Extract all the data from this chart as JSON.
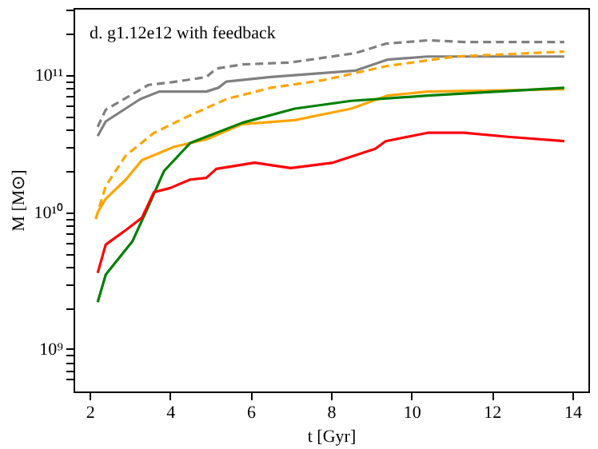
{
  "chart_data": {
    "type": "line",
    "xlabel": "t [Gyr]",
    "ylabel": "M [M⊙]",
    "annotations": [
      "d. g1.12e12 with feedback"
    ],
    "log": "y",
    "grid": false,
    "xlim": [
      1.6,
      14.4
    ],
    "xticks": [
      2,
      4,
      6,
      8,
      10,
      12,
      14
    ],
    "ylim": [
      490000000.0,
      310000000000.0
    ],
    "yticks": [
      {
        "value": 600000000.0,
        "label": null
      },
      {
        "value": 700000000.0,
        "label": null
      },
      {
        "value": 800000000.0,
        "label": null
      },
      {
        "value": 900000000.0,
        "label": null
      },
      {
        "value": 1000000000.0,
        "label": "10⁹"
      },
      {
        "value": 2000000000.0,
        "label": null
      },
      {
        "value": 3000000000.0,
        "label": null
      },
      {
        "value": 4000000000.0,
        "label": null
      },
      {
        "value": 5000000000.0,
        "label": null
      },
      {
        "value": 6000000000.0,
        "label": null
      },
      {
        "value": 7000000000.0,
        "label": null
      },
      {
        "value": 8000000000.0,
        "label": null
      },
      {
        "value": 9000000000.0,
        "label": null
      },
      {
        "value": 10000000000.0,
        "label": "10¹⁰"
      },
      {
        "value": 20000000000.0,
        "label": null
      },
      {
        "value": 30000000000.0,
        "label": null
      },
      {
        "value": 40000000000.0,
        "label": null
      },
      {
        "value": 50000000000.0,
        "label": null
      },
      {
        "value": 60000000000.0,
        "label": null
      },
      {
        "value": 70000000000.0,
        "label": null
      },
      {
        "value": 80000000000.0,
        "label": null
      },
      {
        "value": 90000000000.0,
        "label": null
      },
      {
        "value": 100000000000.0,
        "label": "10¹¹"
      },
      {
        "value": 200000000000.0,
        "label": null
      },
      {
        "value": 300000000000.0,
        "label": null
      }
    ],
    "series": [
      {
        "color": "#808080",
        "line_style": "dashed",
        "x": [
          2.2,
          2.4,
          3.46,
          4.05,
          4.9,
          5.15,
          5.8,
          7.0,
          8.6,
          9.36,
          10.4,
          11.3,
          13.8
        ],
        "values": [
          42000000000.0,
          56000000000.0,
          85000000000.0,
          89000000000.0,
          97000000000.0,
          112000000000.0,
          120000000000.0,
          124000000000.0,
          145000000000.0,
          170000000000.0,
          180000000000.0,
          175000000000.0,
          175000000000.0
        ]
      },
      {
        "color": "#808080",
        "line_style": "solid",
        "x": [
          2.2,
          2.4,
          3.26,
          3.73,
          4.9,
          5.2,
          5.4,
          6.5,
          8.6,
          9.4,
          10.4,
          13.8
        ],
        "values": [
          36000000000.0,
          46000000000.0,
          67000000000.0,
          76000000000.0,
          76000000000.0,
          81000000000.0,
          90000000000.0,
          97000000000.0,
          108000000000.0,
          130000000000.0,
          137000000000.0,
          137000000000.0
        ]
      },
      {
        "color": "#ffa500",
        "line_style": "dashed",
        "x": [
          2.15,
          2.4,
          2.9,
          3.6,
          4.5,
          5.4,
          6.5,
          7.8,
          9.4,
          11.1,
          13.8
        ],
        "values": [
          8900000000.0,
          15500000000.0,
          26000000000.0,
          38000000000.0,
          51000000000.0,
          67000000000.0,
          81000000000.0,
          92000000000.0,
          117000000000.0,
          137000000000.0,
          149000000000.0
        ]
      },
      {
        "color": "#ffa500",
        "line_style": "solid",
        "x": [
          2.2,
          2.4,
          2.9,
          3.3,
          4.1,
          4.9,
          5.8,
          7.1,
          8.5,
          9.4,
          10.4,
          13.8
        ],
        "values": [
          10000000000.0,
          12500000000.0,
          17300000000.0,
          24000000000.0,
          30000000000.0,
          34000000000.0,
          44000000000.0,
          47000000000.0,
          57000000000.0,
          71000000000.0,
          76000000000.0,
          79000000000.0
        ]
      },
      {
        "color": "#008000",
        "line_style": "solid",
        "x": [
          2.2,
          2.4,
          3.06,
          3.46,
          3.85,
          4.5,
          5.8,
          7.1,
          8.5,
          10.4,
          13.8
        ],
        "values": [
          2200000000.0,
          3500000000.0,
          6100000000.0,
          11000000000.0,
          20000000000.0,
          32000000000.0,
          45000000000.0,
          57000000000.0,
          65000000000.0,
          71000000000.0,
          81000000000.0
        ]
      },
      {
        "color": "#ff0000",
        "line_style": "solid",
        "x": [
          2.2,
          2.4,
          2.9,
          3.3,
          3.6,
          4.0,
          4.5,
          4.9,
          5.15,
          6.1,
          7.0,
          8.05,
          9.1,
          9.36,
          10.4,
          11.3,
          12.4,
          13.8
        ],
        "values": [
          3600000000.0,
          5800000000.0,
          7400000000.0,
          9100000000.0,
          14000000000.0,
          15000000000.0,
          17300000000.0,
          17800000000.0,
          20700000000.0,
          23000000000.0,
          21000000000.0,
          23000000000.0,
          29000000000.0,
          33000000000.0,
          38000000000.0,
          38000000000.0,
          35500000000.0,
          33000000000.0
        ]
      }
    ]
  }
}
